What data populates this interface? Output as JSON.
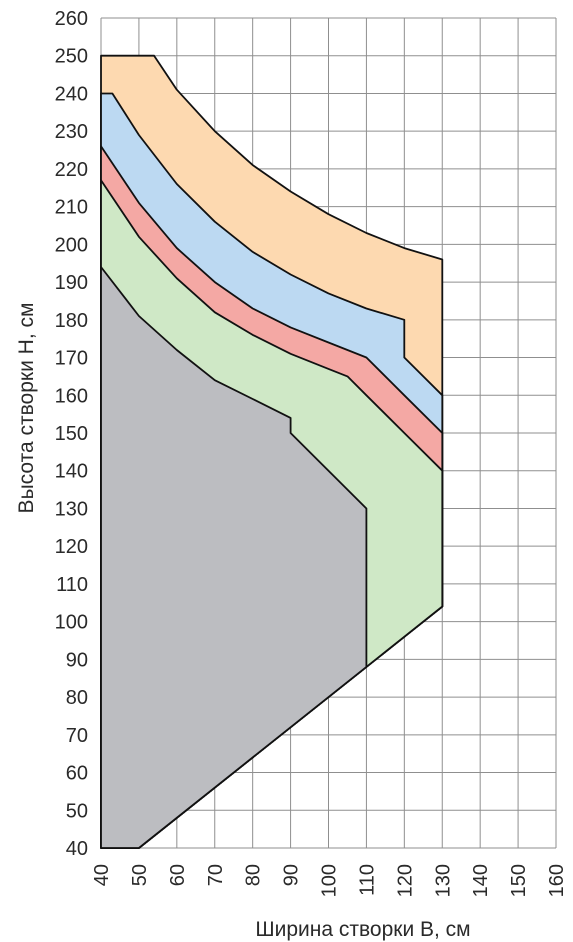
{
  "chart_data": {
    "type": "area",
    "xlabel": "Ширина створки B, см",
    "ylabel": "Высота створки H, см",
    "xlim": [
      40,
      160
    ],
    "ylim": [
      40,
      260
    ],
    "x_ticks": [
      40,
      50,
      60,
      70,
      80,
      90,
      100,
      110,
      120,
      130,
      140,
      150,
      160
    ],
    "y_ticks": [
      40,
      50,
      60,
      70,
      80,
      90,
      100,
      110,
      120,
      130,
      140,
      150,
      160,
      170,
      180,
      190,
      200,
      210,
      220,
      230,
      240,
      250,
      260
    ],
    "grid": true,
    "colors": {
      "orange": "#fdd9b0",
      "blue": "#bcd9f2",
      "red": "#f4a8a4",
      "green": "#cfe8c6",
      "gray": "#bcbdc1"
    },
    "regions": [
      {
        "color_key": "orange",
        "points": [
          [
            40,
            40
          ],
          [
            50,
            40
          ],
          [
            130,
            104
          ],
          [
            130,
            196
          ],
          [
            120,
            199
          ],
          [
            110,
            203
          ],
          [
            100,
            208
          ],
          [
            90,
            214
          ],
          [
            80,
            221
          ],
          [
            70,
            230
          ],
          [
            60,
            241
          ],
          [
            54,
            250
          ],
          [
            40,
            250
          ]
        ]
      },
      {
        "color_key": "blue",
        "points": [
          [
            40,
            40
          ],
          [
            50,
            40
          ],
          [
            130,
            104
          ],
          [
            130,
            160
          ],
          [
            120,
            170
          ],
          [
            120,
            180
          ],
          [
            110,
            183
          ],
          [
            100,
            187
          ],
          [
            90,
            192
          ],
          [
            80,
            198
          ],
          [
            70,
            206
          ],
          [
            60,
            216
          ],
          [
            50,
            229
          ],
          [
            43,
            240
          ],
          [
            40,
            240
          ]
        ]
      },
      {
        "color_key": "red",
        "points": [
          [
            40,
            40
          ],
          [
            50,
            40
          ],
          [
            130,
            104
          ],
          [
            130,
            150
          ],
          [
            120,
            160
          ],
          [
            110,
            170
          ],
          [
            100,
            174
          ],
          [
            90,
            178
          ],
          [
            80,
            183
          ],
          [
            70,
            190
          ],
          [
            60,
            199
          ],
          [
            50,
            211
          ],
          [
            40,
            226
          ]
        ]
      },
      {
        "color_key": "green",
        "points": [
          [
            40,
            40
          ],
          [
            50,
            40
          ],
          [
            130,
            104
          ],
          [
            130,
            140
          ],
          [
            120,
            150
          ],
          [
            110,
            160
          ],
          [
            105,
            165
          ],
          [
            100,
            167
          ],
          [
            90,
            171
          ],
          [
            80,
            176
          ],
          [
            70,
            182
          ],
          [
            60,
            191
          ],
          [
            50,
            202
          ],
          [
            40,
            217
          ]
        ]
      },
      {
        "color_key": "gray",
        "points": [
          [
            40,
            40
          ],
          [
            50,
            40
          ],
          [
            110,
            88
          ],
          [
            110,
            130
          ],
          [
            100,
            140
          ],
          [
            90,
            150
          ],
          [
            90,
            154
          ],
          [
            80,
            159
          ],
          [
            70,
            164
          ],
          [
            60,
            172
          ],
          [
            50,
            181
          ],
          [
            40,
            194
          ]
        ]
      }
    ]
  }
}
